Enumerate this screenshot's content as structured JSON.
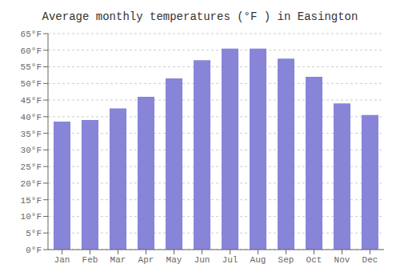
{
  "chart_data": {
    "type": "bar",
    "title": "Average monthly temperatures (°F ) in Easington",
    "categories": [
      "Jan",
      "Feb",
      "Mar",
      "Apr",
      "May",
      "Jun",
      "Jul",
      "Aug",
      "Sep",
      "Oct",
      "Nov",
      "Dec"
    ],
    "values": [
      38.5,
      39.0,
      42.5,
      46.0,
      51.5,
      57.0,
      60.5,
      60.5,
      57.5,
      52.0,
      44.0,
      40.5
    ],
    "ylim": [
      0,
      65
    ],
    "yticks": [
      {
        "value": 0,
        "label": "0°F"
      },
      {
        "value": 5,
        "label": "5°F"
      },
      {
        "value": 10,
        "label": "10°F"
      },
      {
        "value": 15,
        "label": "15°F"
      },
      {
        "value": 20,
        "label": "20°F"
      },
      {
        "value": 25,
        "label": "25°F"
      },
      {
        "value": 30,
        "label": "30°F"
      },
      {
        "value": 35,
        "label": "35°F"
      },
      {
        "value": 40,
        "label": "40°F"
      },
      {
        "value": 45,
        "label": "45°F"
      },
      {
        "value": 50,
        "label": "50°F"
      },
      {
        "value": 55,
        "label": "55°F"
      },
      {
        "value": 60,
        "label": "60°F"
      },
      {
        "value": 65,
        "label": "65°F"
      }
    ],
    "grid": true
  }
}
